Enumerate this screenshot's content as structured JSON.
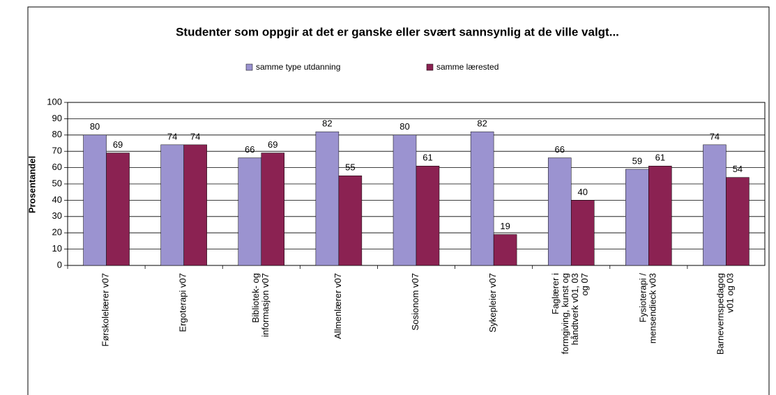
{
  "chart_data": {
    "type": "bar",
    "title": "Studenter som oppgir at det er ganske eller svært sannsynlig at de ville valgt...",
    "y_label": "Prosentandel",
    "categories": [
      "Førskolelærer v07",
      "Ergoterapi v07",
      "Bibliotek- og\ninformasjon v07",
      "Allmenlærer v07",
      "Sosionom v07",
      "Sykepleier v07",
      "Faglærer i\nformgiving, kunst og\nhåndtverk v01, 03\nog 07",
      "Fysioterapi /\nmensendieck v03",
      "Barnevernspedagog\nv01 og 03"
    ],
    "series": [
      {
        "name": "samme type utdanning",
        "color": "#9b93d0",
        "values": [
          80,
          74,
          66,
          82,
          80,
          82,
          66,
          59,
          74
        ]
      },
      {
        "name": "samme lærested",
        "color": "#8b2252",
        "values": [
          69,
          74,
          69,
          55,
          61,
          19,
          40,
          61,
          54
        ]
      }
    ],
    "ylim": [
      0,
      100
    ],
    "yticks": [
      0,
      10,
      20,
      30,
      40,
      50,
      60,
      70,
      80,
      90,
      100
    ],
    "grid": true,
    "legend": "top"
  }
}
